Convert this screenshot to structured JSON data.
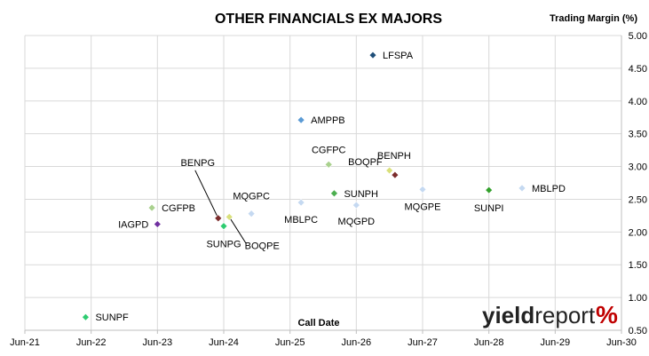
{
  "chart_data": {
    "type": "scatter",
    "title": "OTHER FINANCIALS EX MAJORS",
    "xlabel": "Call Date",
    "ylabel": "Trading Margin (%)",
    "x_ticks": [
      "Jun-21",
      "Jun-22",
      "Jun-23",
      "Jun-24",
      "Jun-25",
      "Jun-26",
      "Jun-27",
      "Jun-28",
      "Jun-29",
      "Jun-30"
    ],
    "y_ticks": [
      "0.50",
      "1.00",
      "1.50",
      "2.00",
      "2.50",
      "3.00",
      "3.50",
      "4.00",
      "4.50",
      "5.00"
    ],
    "xlim": [
      "2021-06",
      "2030-06"
    ],
    "ylim": [
      0.5,
      5.0
    ],
    "grid": true,
    "points": [
      {
        "label": "LFSPA",
        "x": "2026-09",
        "y": 4.7,
        "color": "#1f4e79"
      },
      {
        "label": "AMPPB",
        "x": "2025-08",
        "y": 3.71,
        "color": "#5b9bd5"
      },
      {
        "label": "CGFPC",
        "x": "2026-01",
        "y": 3.03,
        "color": "#a9d18e"
      },
      {
        "label": "BENPH",
        "x": "2027-01",
        "y": 2.87,
        "color": "#7b2c2c"
      },
      {
        "label": "BOQPF",
        "x": "2026-12",
        "y": 2.94,
        "color": "#d9e07a"
      },
      {
        "label": "MBLPD",
        "x": "2028-12",
        "y": 2.67,
        "color": "#c5d9f1"
      },
      {
        "label": "SUNPI",
        "x": "2028-06",
        "y": 2.64,
        "color": "#33a02c"
      },
      {
        "label": "MQGPE",
        "x": "2027-06",
        "y": 2.65,
        "color": "#c5d9f1"
      },
      {
        "label": "SUNPH",
        "x": "2026-02",
        "y": 2.59,
        "color": "#4caf50"
      },
      {
        "label": "MBLPC",
        "x": "2025-08",
        "y": 2.45,
        "color": "#c5d9f1"
      },
      {
        "label": "MQGPD",
        "x": "2026-06",
        "y": 2.41,
        "color": "#c5d9f1"
      },
      {
        "label": "MQGPC",
        "x": "2024-11",
        "y": 2.28,
        "color": "#c5d9f1"
      },
      {
        "label": "CGFPB",
        "x": "2023-05",
        "y": 2.37,
        "color": "#a9d18e"
      },
      {
        "label": "BENPG",
        "x": "2024-05",
        "y": 2.21,
        "color": "#7b2c2c"
      },
      {
        "label": "BOQPE",
        "x": "2024-07",
        "y": 2.23,
        "color": "#d9e07a"
      },
      {
        "label": "IAGPD",
        "x": "2023-06",
        "y": 2.12,
        "color": "#7030a0"
      },
      {
        "label": "SUNPG",
        "x": "2024-06",
        "y": 2.09,
        "color": "#2ecc71"
      },
      {
        "label": "SUNPF",
        "x": "2022-05",
        "y": 0.7,
        "color": "#2ecc71"
      }
    ]
  },
  "logo": {
    "text_bold": "yield",
    "text_regular": "report",
    "pct": "%"
  }
}
